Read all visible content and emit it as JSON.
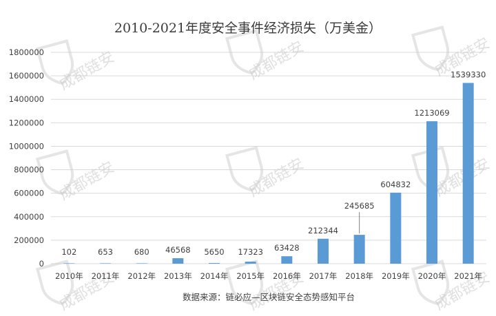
{
  "chart_data": {
    "type": "bar",
    "title": "2010-2021年度安全事件经济损失（万美金）",
    "categories": [
      "2010年",
      "2011年",
      "2012年",
      "2013年",
      "2014年",
      "2015年",
      "2016年",
      "2017年",
      "2018年",
      "2019年",
      "2020年",
      "2021年"
    ],
    "values": [
      102,
      653,
      680,
      46568,
      5650,
      17323,
      63428,
      212344,
      245685,
      604832,
      1213069,
      1539330
    ],
    "data_labels": [
      "102",
      "653",
      "680",
      "46568",
      "5650",
      "17323",
      "63428",
      "212344",
      "245685",
      "604832",
      "1213069",
      "1539330"
    ],
    "y_ticks": [
      "0",
      "200000",
      "400000",
      "600000",
      "800000",
      "1000000",
      "1200000",
      "1400000",
      "1600000",
      "1800000"
    ],
    "ylim": [
      0,
      1800000
    ],
    "grid": true,
    "bar_color": "#5b9bd5",
    "grid_color": "#d9d9d9",
    "source": "数据来源：链必应—区块链安全态势感知平台",
    "watermark": "成都链安"
  }
}
